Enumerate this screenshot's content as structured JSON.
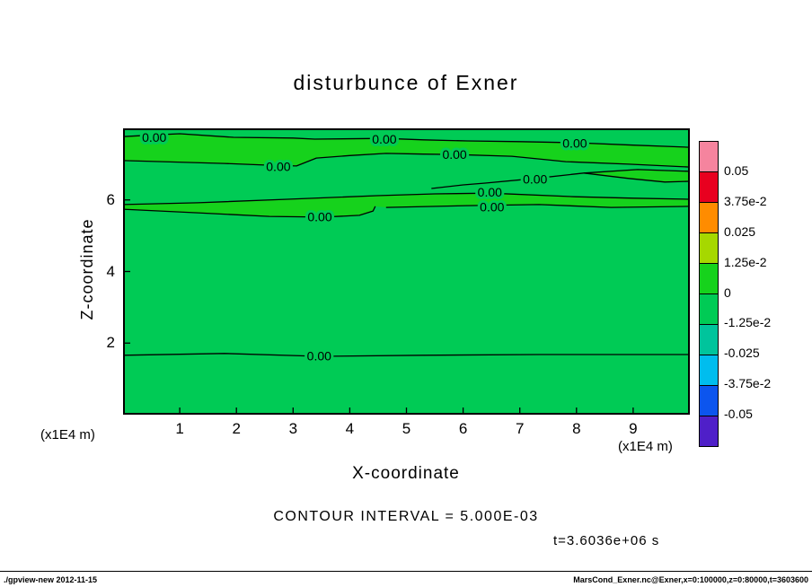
{
  "title": "disturbunce of Exner",
  "axes": {
    "x_label": "X-coordinate",
    "y_label": "Z-coordinate",
    "x_unit": "(x1E4 m)",
    "y_unit": "(x1E4 m)"
  },
  "annotations": {
    "contour_interval": "CONTOUR INTERVAL = 5.000E-03",
    "time": "t=3.6036e+06 s"
  },
  "footer": {
    "left": "./gpview-new  2012-11-15",
    "right": "MarsCond_Exner.nc@Exner,x=0:100000,z=0:80000,t=3603600"
  },
  "chart_data": {
    "type": "heatmap",
    "subtype": "filled-contour",
    "title": "disturbunce of Exner",
    "xlabel": "X-coordinate (x1E4 m)",
    "ylabel": "Z-coordinate (x1E4 m)",
    "xlim": [
      0,
      10
    ],
    "ylim": [
      0,
      8
    ],
    "xticks": [
      1,
      2,
      3,
      4,
      5,
      6,
      7,
      8,
      9
    ],
    "yticks": [
      2,
      4,
      6
    ],
    "contour_interval": 0.005,
    "contour_level_shown": 0.0,
    "time_seconds": "3.6036e+06",
    "fill_colors": {
      "main": "#00cb55",
      "band": "#16d21c"
    },
    "colorbar": {
      "labels": [
        "0.05",
        "3.75e-2",
        "0.025",
        "1.25e-2",
        "0",
        "-1.25e-2",
        "-0.025",
        "-3.75e-2",
        "-0.05"
      ],
      "colors": [
        "#f5849e",
        "#e8001f",
        "#ff8c00",
        "#a6d800",
        "#16d21c",
        "#00cb55",
        "#00c49c",
        "#00bdee",
        "#0c55ee",
        "#4f1fc8"
      ]
    },
    "zero_contours": [
      [
        [
          0,
          7.77
        ],
        [
          0.6,
          7.82
        ],
        [
          1.0,
          7.85
        ],
        [
          1.95,
          7.75
        ],
        [
          3.0,
          7.73
        ],
        [
          3.38,
          7.7
        ],
        [
          4.61,
          7.72
        ],
        [
          5.3,
          7.68
        ],
        [
          6.07,
          7.65
        ],
        [
          7.0,
          7.63
        ],
        [
          7.97,
          7.6
        ],
        [
          9.0,
          7.53
        ],
        [
          10,
          7.47
        ]
      ],
      [
        [
          0,
          7.1
        ],
        [
          0.9,
          7.06
        ],
        [
          1.79,
          7.02
        ],
        [
          2.6,
          6.97
        ],
        [
          3.06,
          6.95
        ],
        [
          3.41,
          7.17
        ],
        [
          4.0,
          7.24
        ],
        [
          4.64,
          7.3
        ],
        [
          5.3,
          7.28
        ],
        [
          5.83,
          7.27
        ],
        [
          6.86,
          7.22
        ],
        [
          7.5,
          7.12
        ],
        [
          7.81,
          7.07
        ],
        [
          8.92,
          7.0
        ],
        [
          10,
          6.92
        ]
      ],
      [
        [
          5.44,
          6.32
        ],
        [
          6.0,
          6.42
        ],
        [
          6.39,
          6.47
        ],
        [
          7.27,
          6.6
        ],
        [
          8.13,
          6.75
        ],
        [
          9.08,
          6.85
        ],
        [
          10,
          6.8
        ]
      ],
      [
        [
          8.13,
          6.75
        ],
        [
          8.92,
          6.6
        ],
        [
          9.56,
          6.5
        ],
        [
          10,
          6.52
        ]
      ],
      [
        [
          0,
          5.87
        ],
        [
          1.32,
          5.92
        ],
        [
          2.9,
          6.02
        ],
        [
          4.48,
          6.12
        ],
        [
          5.5,
          6.17
        ],
        [
          6.47,
          6.19
        ],
        [
          7.97,
          6.09
        ],
        [
          9.0,
          6.05
        ],
        [
          10,
          6.02
        ]
      ],
      [
        [
          4.64,
          5.79
        ],
        [
          6.07,
          5.84
        ],
        [
          7.34,
          5.87
        ],
        [
          8.61,
          5.79
        ],
        [
          10,
          5.82
        ]
      ],
      [
        [
          0,
          5.74
        ],
        [
          1.32,
          5.64
        ],
        [
          2.58,
          5.54
        ],
        [
          3.53,
          5.52
        ],
        [
          4.17,
          5.57
        ],
        [
          4.41,
          5.69
        ],
        [
          4.45,
          5.82
        ]
      ],
      [
        [
          0,
          1.66
        ],
        [
          1.79,
          1.71
        ],
        [
          3.46,
          1.63
        ],
        [
          5.28,
          1.66
        ],
        [
          7.34,
          1.68
        ],
        [
          10,
          1.68
        ]
      ]
    ],
    "bands": [
      [
        [
          0,
          7.77
        ],
        [
          1.0,
          7.85
        ],
        [
          1.95,
          7.75
        ],
        [
          3.38,
          7.7
        ],
        [
          4.61,
          7.72
        ],
        [
          6.07,
          7.65
        ],
        [
          7.97,
          7.6
        ],
        [
          10,
          7.47
        ],
        [
          10,
          6.92
        ],
        [
          8.92,
          7.0
        ],
        [
          7.81,
          7.07
        ],
        [
          6.86,
          7.22
        ],
        [
          5.83,
          7.27
        ],
        [
          4.64,
          7.3
        ],
        [
          3.41,
          7.17
        ],
        [
          3.06,
          6.95
        ],
        [
          1.79,
          7.02
        ],
        [
          0,
          7.1
        ]
      ],
      [
        [
          0,
          5.87
        ],
        [
          1.32,
          5.92
        ],
        [
          2.9,
          6.02
        ],
        [
          4.48,
          6.12
        ],
        [
          6.47,
          6.19
        ],
        [
          7.97,
          6.09
        ],
        [
          10,
          6.02
        ],
        [
          10,
          5.82
        ],
        [
          8.61,
          5.79
        ],
        [
          7.34,
          5.87
        ],
        [
          6.07,
          5.84
        ],
        [
          4.64,
          5.79
        ],
        [
          4.45,
          5.82
        ],
        [
          4.41,
          5.69
        ],
        [
          4.17,
          5.57
        ],
        [
          3.53,
          5.52
        ],
        [
          2.58,
          5.54
        ],
        [
          1.32,
          5.64
        ],
        [
          0,
          5.74
        ]
      ],
      [
        [
          8.13,
          6.75
        ],
        [
          9.08,
          6.85
        ],
        [
          10,
          6.8
        ],
        [
          10,
          6.52
        ],
        [
          9.56,
          6.5
        ],
        [
          8.92,
          6.6
        ]
      ]
    ],
    "contour_labels": [
      {
        "x": 0.55,
        "z": 7.75,
        "text": "0.00"
      },
      {
        "x": 4.61,
        "z": 7.7,
        "text": "0.00"
      },
      {
        "x": 7.97,
        "z": 7.58,
        "text": "0.00"
      },
      {
        "x": 5.85,
        "z": 7.27,
        "text": "0.00"
      },
      {
        "x": 2.74,
        "z": 6.93,
        "text": "0.00"
      },
      {
        "x": 7.27,
        "z": 6.58,
        "text": "0.00"
      },
      {
        "x": 6.47,
        "z": 6.22,
        "text": "0.00"
      },
      {
        "x": 6.51,
        "z": 5.8,
        "text": "0.00"
      },
      {
        "x": 3.47,
        "z": 5.53,
        "text": "0.00"
      },
      {
        "x": 3.46,
        "z": 1.64,
        "text": "0.00"
      }
    ]
  }
}
